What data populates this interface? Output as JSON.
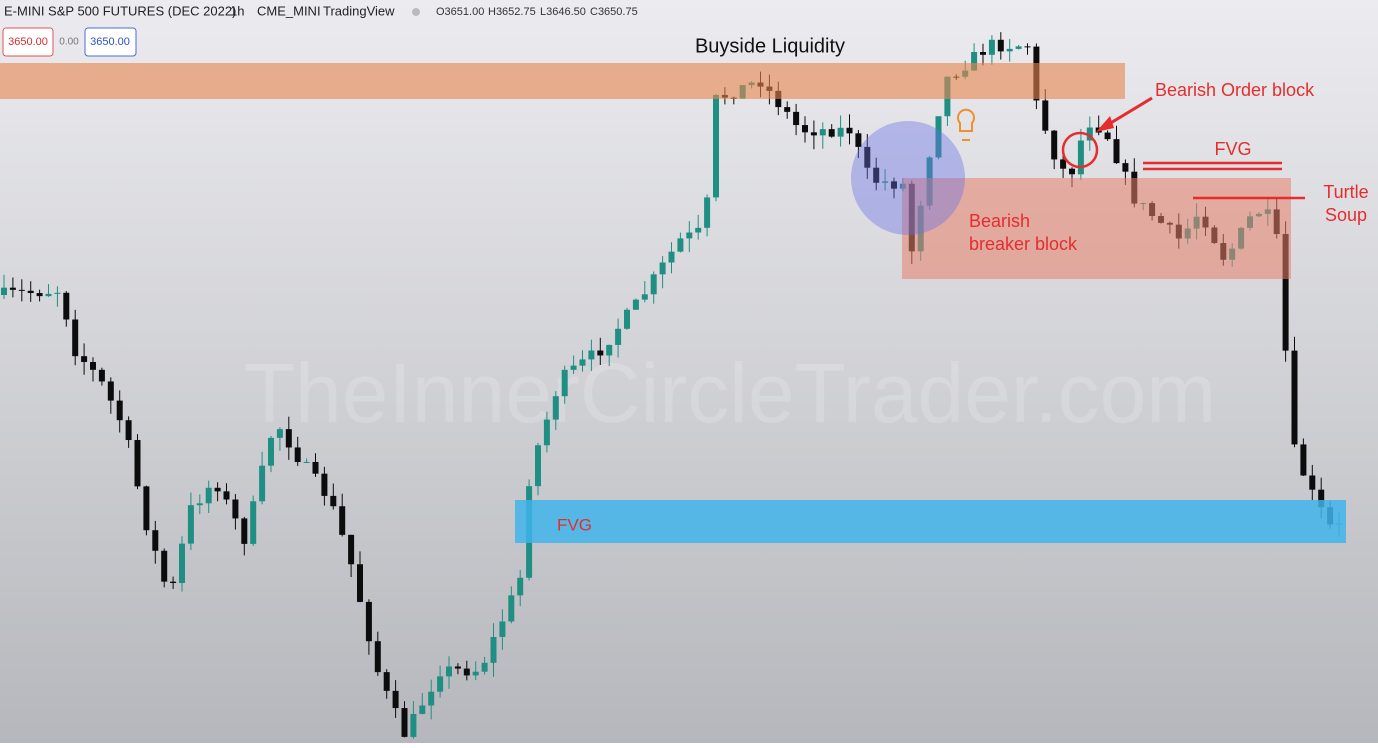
{
  "header": {
    "symbol": "E-MINI S&P 500 FUTURES (DEC 2022)",
    "interval": "1h",
    "exchange": "CME_MINI",
    "source": "TradingView",
    "open": "O3651.00",
    "high": "H3652.75",
    "low": "L3646.50",
    "close": "C3650.75"
  },
  "order_panel": {
    "sell": "3650.00",
    "spread": "0.00",
    "buy": "3650.00"
  },
  "annotations": {
    "buyside": "Buyside Liquidity",
    "order_block": "Bearish Order block",
    "fvg_upper": "FVG",
    "breaker": [
      "Bearish",
      "breaker block"
    ],
    "turtle": [
      "Turtle",
      "Soup"
    ],
    "fvg_lower": "FVG"
  },
  "watermark": "TheInnerCircleTrader.com"
}
